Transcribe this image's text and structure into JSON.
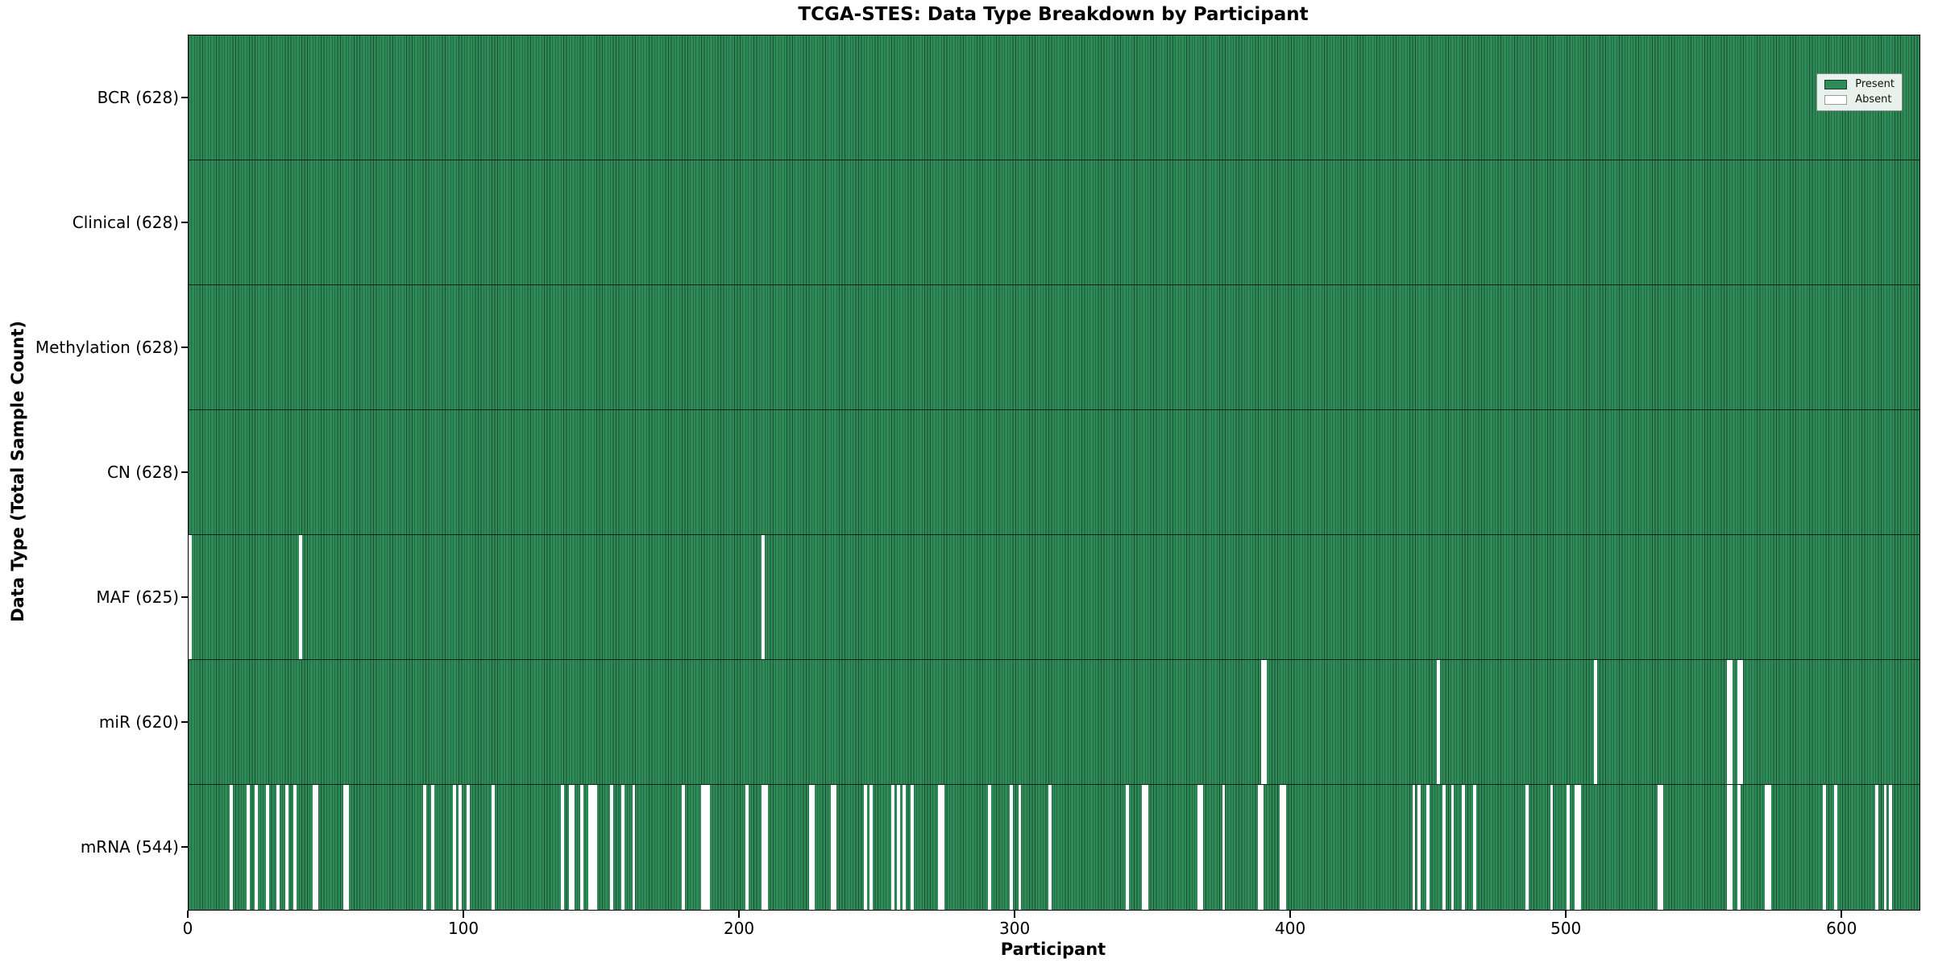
{
  "title": "TCGA-STES: Data Type Breakdown by Participant",
  "legend": {
    "present_label": "Present",
    "absent_label": "Absent"
  },
  "colors": {
    "present": "#2e8b57",
    "absent": "#ffffff",
    "bar_edge": "#1b4d32",
    "axis": "#000000",
    "legend_bg": "#fafcfa"
  },
  "chart_data": {
    "type": "heatmap",
    "title": "TCGA-STES: Data Type Breakdown by Participant",
    "xlabel": "Participant",
    "ylabel": "Data Type (Total Sample Count)",
    "x_range": [
      0,
      628
    ],
    "x_ticks": [
      0,
      100,
      200,
      300,
      400,
      500,
      600
    ],
    "n_participants": 628,
    "grid": false,
    "legend_position": "upper right",
    "legend_entries": [
      "Present",
      "Absent"
    ],
    "cell_semantics": "green cell = data type present for participant, white cell = absent",
    "rows": [
      {
        "name": "BCR",
        "label": "BCR (628)",
        "total": 628,
        "absent_participants": []
      },
      {
        "name": "Clinical",
        "label": "Clinical (628)",
        "total": 628,
        "absent_participants": []
      },
      {
        "name": "Methylation",
        "label": "Methylation (628)",
        "total": 628,
        "absent_participants": []
      },
      {
        "name": "CN",
        "label": "CN (628)",
        "total": 628,
        "absent_participants": []
      },
      {
        "name": "MAF",
        "label": "MAF (625)",
        "total": 625,
        "absent_participants": [
          0,
          40,
          208
        ]
      },
      {
        "name": "miR",
        "label": "miR (620)",
        "total": 620,
        "absent_participants": [
          389,
          390,
          453,
          510,
          558,
          559,
          562,
          563
        ]
      },
      {
        "name": "mRNA",
        "label": "mRNA (544)",
        "total": 544,
        "absent_participants": [
          15,
          21,
          24,
          28,
          32,
          35,
          38,
          45,
          46,
          56,
          57,
          85,
          88,
          96,
          98,
          101,
          110,
          135,
          138,
          139,
          142,
          145,
          146,
          147,
          153,
          157,
          161,
          179,
          186,
          187,
          188,
          202,
          208,
          209,
          225,
          226,
          233,
          234,
          245,
          247,
          255,
          257,
          259,
          262,
          272,
          273,
          290,
          298,
          301,
          312,
          340,
          346,
          347,
          366,
          367,
          375,
          388,
          389,
          396,
          397,
          444,
          446,
          449,
          455,
          458,
          462,
          466,
          485,
          494,
          500,
          503,
          504,
          533,
          534,
          558,
          559,
          562,
          572,
          573,
          593,
          597,
          612,
          615,
          617
        ]
      }
    ]
  }
}
